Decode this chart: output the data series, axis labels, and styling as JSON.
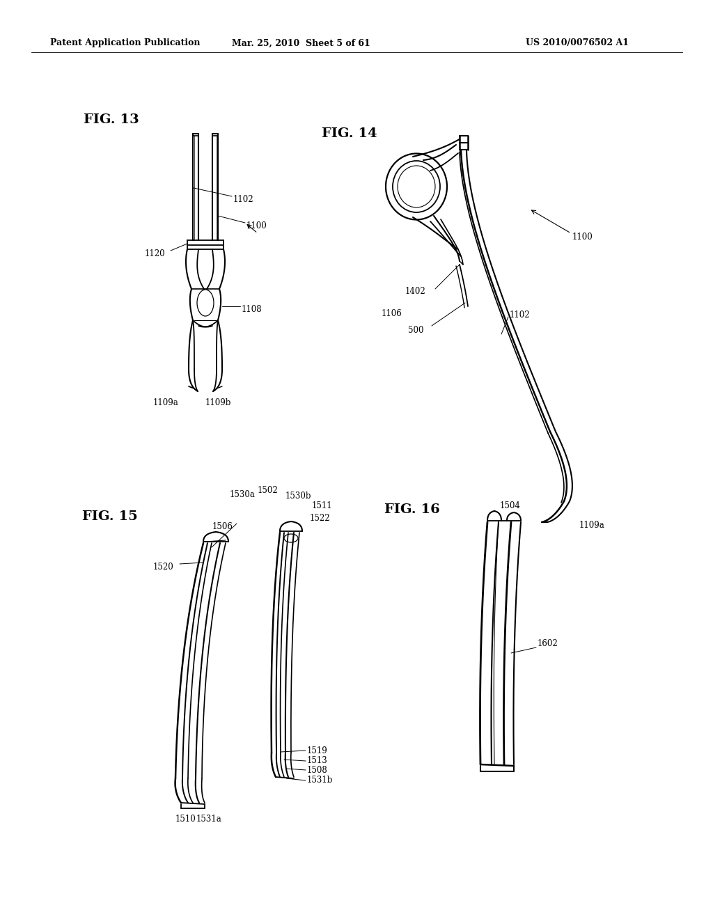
{
  "bg_color": "#ffffff",
  "text_color": "#000000",
  "line_color": "#000000",
  "header_left": "Patent Application Publication",
  "header_center": "Mar. 25, 2010  Sheet 5 of 61",
  "header_right": "US 2010/0076502 A1",
  "fig13_label": "FIG. 13",
  "fig14_label": "FIG. 14",
  "fig15_label": "FIG. 15",
  "fig16_label": "FIG. 16",
  "header_font_size": 9,
  "fig_label_font_size": 14,
  "annotation_font_size": 8.5
}
